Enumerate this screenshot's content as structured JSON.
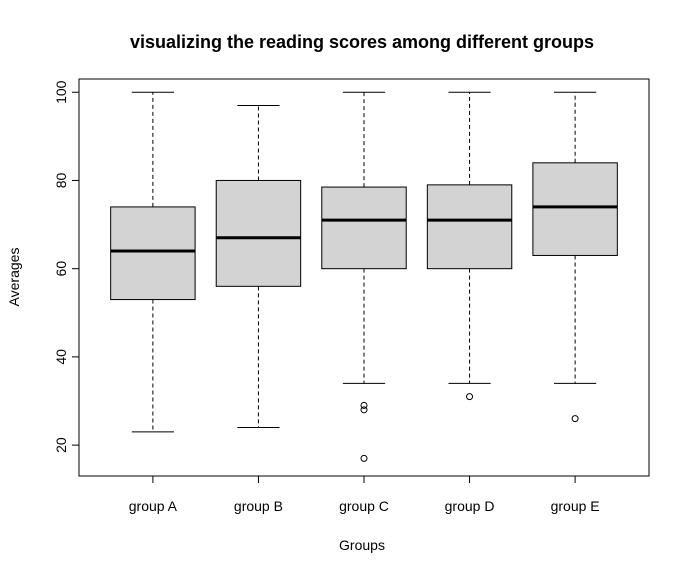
{
  "chart_data": {
    "type": "box",
    "title": "visualizing the reading scores among different groups",
    "xlabel": "Groups",
    "ylabel": "Averages",
    "ylim": [
      13,
      103
    ],
    "yticks": [
      20,
      40,
      60,
      80,
      100
    ],
    "grid": false,
    "categories": [
      "group A",
      "group B",
      "group C",
      "group D",
      "group E"
    ],
    "boxes": [
      {
        "whisker_low": 23,
        "q1": 53,
        "median": 64,
        "q3": 74,
        "whisker_high": 100,
        "outliers": []
      },
      {
        "whisker_low": 24,
        "q1": 56,
        "median": 67,
        "q3": 80,
        "whisker_high": 97,
        "outliers": []
      },
      {
        "whisker_low": 34,
        "q1": 60,
        "median": 71,
        "q3": 78.5,
        "whisker_high": 100,
        "outliers": [
          17,
          28,
          29
        ]
      },
      {
        "whisker_low": 34,
        "q1": 60,
        "median": 71,
        "q3": 79,
        "whisker_high": 100,
        "outliers": [
          31
        ]
      },
      {
        "whisker_low": 34,
        "q1": 63,
        "median": 74,
        "q3": 84,
        "whisker_high": 100,
        "outliers": [
          26
        ]
      }
    ],
    "box_color": "#d3d3d3"
  }
}
